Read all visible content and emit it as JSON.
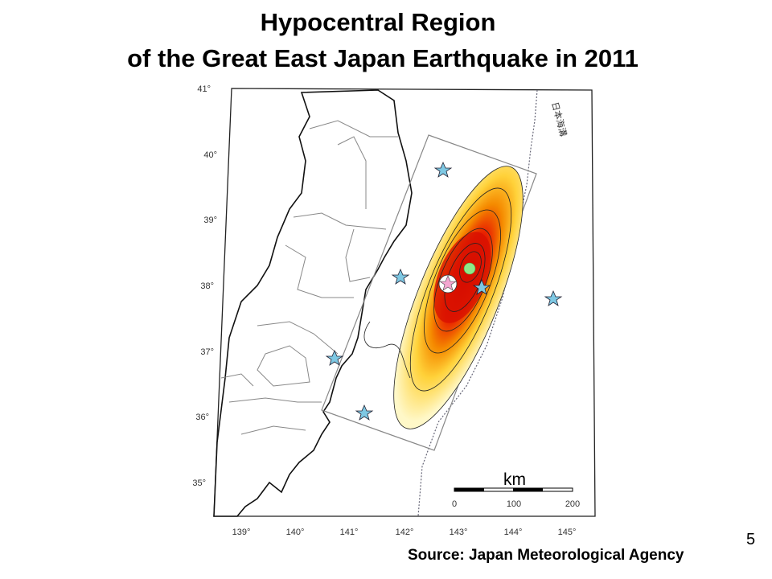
{
  "title": {
    "line1": "Hypocentral Region",
    "line2": "of the Great East Japan Earthquake in 2011"
  },
  "map": {
    "lat_labels": [
      "41°",
      "40°",
      "39°",
      "38°",
      "37°",
      "36°",
      "35°"
    ],
    "lon_labels": [
      "139°",
      "140°",
      "141°",
      "142°",
      "143°",
      "144°",
      "145°"
    ],
    "trench_label": "日本海溝",
    "scale": {
      "unit": "km",
      "labels": [
        "0",
        "100",
        "200"
      ]
    },
    "colors": {
      "slip_high": "#d40000",
      "slip_mid": "#f08a00",
      "slip_low": "#ffe84a",
      "station_star": "#7ec8e3",
      "epicenter_star": "#f4a6d0",
      "centroid": "#8ee88a"
    }
  },
  "page_number": "5",
  "source": "Source: Japan Meteorological Agency"
}
